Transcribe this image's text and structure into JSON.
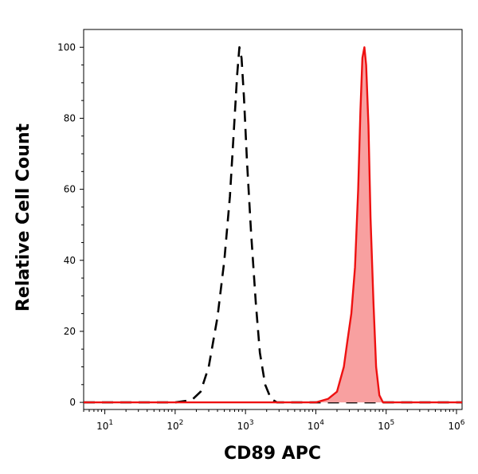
{
  "chart_data": {
    "type": "area",
    "xlabel": "CD89 APC",
    "ylabel": "Relative Cell Count",
    "x_scale": "log",
    "xlim": [
      5,
      1200000
    ],
    "ylim": [
      -2,
      105
    ],
    "x_ticks": [
      {
        "value": 10,
        "base": "10",
        "exp": "1"
      },
      {
        "value": 100,
        "base": "10",
        "exp": "2"
      },
      {
        "value": 1000,
        "base": "10",
        "exp": "3"
      },
      {
        "value": 10000,
        "base": "10",
        "exp": "4"
      },
      {
        "value": 100000,
        "base": "10",
        "exp": "5"
      },
      {
        "value": 1000000,
        "base": "10",
        "exp": "6"
      }
    ],
    "y_ticks": [
      0,
      20,
      40,
      60,
      80,
      100
    ],
    "series": [
      {
        "style": "dashed",
        "color": "#000000",
        "fill": "none",
        "x": [
          5,
          100,
          150,
          180,
          230,
          300,
          400,
          500,
          600,
          680,
          760,
          820,
          880,
          950,
          1050,
          1200,
          1400,
          1600,
          1900,
          2300,
          2800,
          1200000
        ],
        "y": [
          0,
          0,
          0.5,
          1,
          3,
          10,
          24,
          40,
          58,
          76,
          92,
          100,
          97,
          86,
          68,
          48,
          28,
          14,
          5,
          1,
          0,
          0
        ]
      },
      {
        "style": "solid",
        "color": "#ee1111",
        "fill": "#f8a0a0",
        "x": [
          5,
          10000,
          15000,
          20000,
          25000,
          28000,
          32000,
          36000,
          40000,
          43000,
          46000,
          49000,
          52000,
          56000,
          60000,
          66000,
          72000,
          80000,
          90000,
          1200000
        ],
        "y": [
          0,
          0,
          1,
          3,
          10,
          17,
          25,
          38,
          60,
          82,
          97,
          100,
          95,
          78,
          52,
          28,
          10,
          2,
          0,
          0
        ]
      }
    ]
  }
}
